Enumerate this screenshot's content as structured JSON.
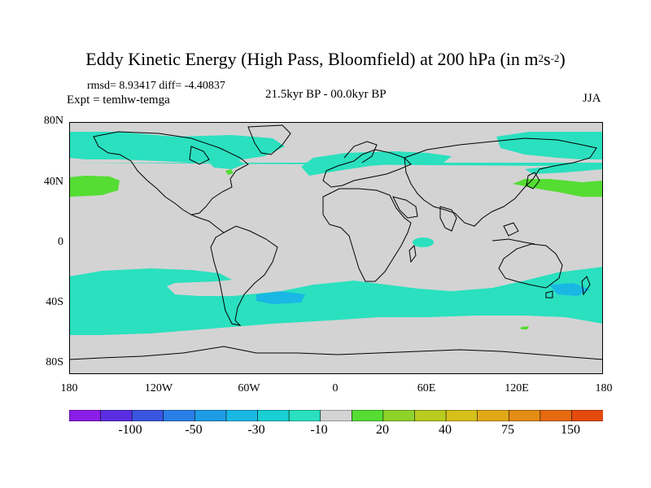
{
  "figure": {
    "title_main": "Eddy Kinetic Energy (High Pass, Bloomfield) at 200 hPa (in m",
    "title_exp1": "2",
    "title_mid": "s",
    "title_exp2": "-2",
    "title_close": ")",
    "stats": "rmsd= 8.93417 diff= -4.40837",
    "experiment": "Expt = temhw-temga",
    "period": "21.5kyr BP - 00.0kyr BP",
    "season": "JJA"
  },
  "axes": {
    "lat_labels": [
      "80N",
      "40N",
      "0",
      "40S",
      "80S"
    ],
    "lon_labels": [
      "180",
      "120W",
      "60W",
      "0",
      "60E",
      "120E",
      "180"
    ]
  },
  "colorbar": {
    "colors": [
      "#8a1ee8",
      "#5a2ee0",
      "#3a55e0",
      "#2b7ee8",
      "#1e9ce6",
      "#19b8e4",
      "#18cfd3",
      "#2ae0bf",
      "#d3d3d3",
      "#55dd33",
      "#8fd22a",
      "#b8cb1e",
      "#d6c01a",
      "#e2a818",
      "#e58c15",
      "#e56a10",
      "#e34a0d"
    ],
    "labels": [
      "-100",
      "-50",
      "-30",
      "-10",
      "20",
      "40",
      "75",
      "150"
    ]
  },
  "map_colors": {
    "background": "#d3d3d3",
    "mid_positive": "#2ae0bf",
    "strong_positive": "#19b8e4",
    "negative": "#55dd33",
    "coast": "#000000"
  }
}
